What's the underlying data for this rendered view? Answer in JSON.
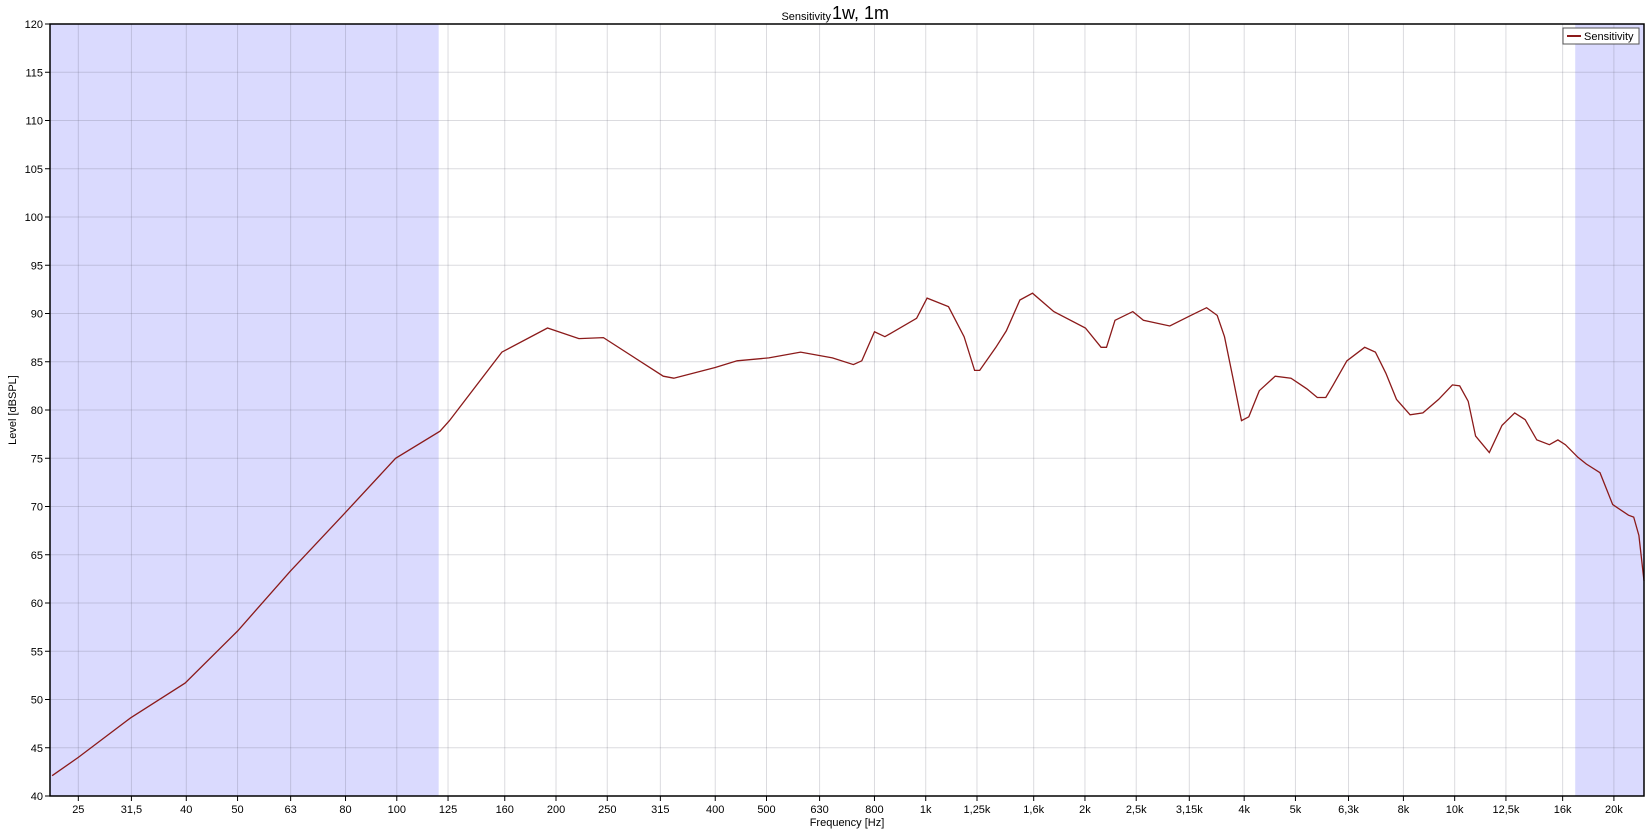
{
  "chart_data": {
    "type": "line",
    "title": "1w, 1m",
    "subtitle": "Sensitivity",
    "xlabel": "Frequency [Hz]",
    "ylabel": "Level [dBSPL]",
    "x_scale": "log",
    "xlim": [
      22.1,
      22800
    ],
    "ylim": [
      40,
      120
    ],
    "grid": true,
    "legend_position": "top-right",
    "x_ticks": [
      {
        "value": 25,
        "label": "25"
      },
      {
        "value": 31.5,
        "label": "31,5"
      },
      {
        "value": 40,
        "label": "40"
      },
      {
        "value": 50,
        "label": "50"
      },
      {
        "value": 63,
        "label": "63"
      },
      {
        "value": 80,
        "label": "80"
      },
      {
        "value": 100,
        "label": "100"
      },
      {
        "value": 125,
        "label": "125"
      },
      {
        "value": 160,
        "label": "160"
      },
      {
        "value": 200,
        "label": "200"
      },
      {
        "value": 250,
        "label": "250"
      },
      {
        "value": 315,
        "label": "315"
      },
      {
        "value": 400,
        "label": "400"
      },
      {
        "value": 500,
        "label": "500"
      },
      {
        "value": 630,
        "label": "630"
      },
      {
        "value": 800,
        "label": "800"
      },
      {
        "value": 1000,
        "label": "1k"
      },
      {
        "value": 1250,
        "label": "1,25k"
      },
      {
        "value": 1600,
        "label": "1,6k"
      },
      {
        "value": 2000,
        "label": "2k"
      },
      {
        "value": 2500,
        "label": "2,5k"
      },
      {
        "value": 3150,
        "label": "3,15k"
      },
      {
        "value": 4000,
        "label": "4k"
      },
      {
        "value": 5000,
        "label": "5k"
      },
      {
        "value": 6300,
        "label": "6,3k"
      },
      {
        "value": 8000,
        "label": "8k"
      },
      {
        "value": 10000,
        "label": "10k"
      },
      {
        "value": 12500,
        "label": "12,5k"
      },
      {
        "value": 16000,
        "label": "16k"
      },
      {
        "value": 20000,
        "label": "20k"
      }
    ],
    "y_ticks": [
      40,
      45,
      50,
      55,
      60,
      65,
      70,
      75,
      80,
      85,
      90,
      95,
      100,
      105,
      110,
      115,
      120
    ],
    "shaded_ranges": [
      {
        "from": 22.1,
        "to": 120
      },
      {
        "from": 16900,
        "to": 22800
      }
    ],
    "shade_color": "#dadafe",
    "series": [
      {
        "name": "Sensitivity",
        "color": "#8b1a1a",
        "x": [
          22.3,
          25,
          31.4,
          39.8,
          50,
          62.9,
          79.1,
          99.5,
          120.7,
          125.8,
          158,
          192.7,
          221,
          245.8,
          319,
          334,
          400,
          440,
          505,
          580,
          666,
          730,
          757,
          800,
          837,
          961,
          1006,
          1104,
          1182,
          1237,
          1265,
          1357,
          1420,
          1507,
          1592,
          1746,
          2004,
          2146,
          2197,
          2279,
          2463,
          2579,
          2893,
          3171,
          3397,
          3557,
          3672,
          3810,
          3953,
          4082,
          4273,
          4579,
          4905,
          5254,
          5500,
          5706,
          5894,
          6254,
          6760,
          7081,
          7413,
          7762,
          8238,
          8709,
          9326,
          9901,
          10222,
          10606,
          10955,
          11628,
          12286,
          12985,
          13594,
          14300,
          15107,
          15672,
          16190,
          17096,
          17736,
          18827,
          19900,
          21311,
          21800,
          22300,
          22800
        ],
        "y": [
          42.1,
          44.0,
          48.1,
          51.7,
          57.1,
          63.3,
          69.1,
          75.0,
          77.8,
          78.9,
          86.0,
          88.5,
          87.4,
          87.5,
          83.5,
          83.3,
          84.4,
          85.1,
          85.4,
          86.0,
          85.4,
          84.7,
          85.1,
          88.1,
          87.6,
          89.5,
          91.6,
          90.7,
          87.6,
          84.1,
          84.1,
          86.5,
          88.2,
          91.4,
          92.1,
          90.2,
          88.5,
          86.5,
          86.5,
          89.3,
          90.2,
          89.3,
          88.7,
          89.8,
          90.6,
          89.8,
          87.6,
          83.3,
          78.9,
          79.3,
          82.0,
          83.5,
          83.3,
          82.2,
          81.3,
          81.3,
          82.6,
          85.1,
          86.5,
          86.0,
          83.8,
          81.1,
          79.5,
          79.7,
          81.1,
          82.6,
          82.5,
          80.9,
          77.3,
          75.6,
          78.4,
          79.7,
          79.0,
          76.9,
          76.4,
          76.9,
          76.4,
          75.1,
          74.4,
          73.5,
          70.2,
          69.1,
          68.9,
          67.0,
          62.3
        ]
      }
    ]
  }
}
